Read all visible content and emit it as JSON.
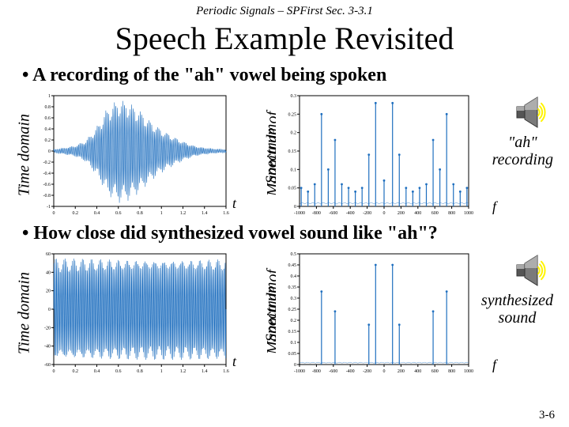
{
  "header": "Periodic Signals – SPFirst Sec. 3-3.1",
  "title": "Speech Example Revisited",
  "bullet1": "• A recording of the \"ah\" vowel being spoken",
  "bullet2": "• How close did synthesized vowel sound like \"ah\"?",
  "labels": {
    "time_domain": "Time domain",
    "magnitude_of": "Magnitude of",
    "spectrum": "Spectrum",
    "t": "t",
    "f": "f"
  },
  "captions": {
    "row1_l1": "\"ah\"",
    "row1_l2": "recording",
    "row2_l1": "synthesized",
    "row2_l2": "sound"
  },
  "slidenum": "3-6",
  "plots": {
    "time1": {
      "type": "line",
      "bg": "#ffffff",
      "axis_color": "#000000",
      "line_color": "#1f6fbf",
      "grid_color": "#d9d9d9",
      "xlim": [
        0,
        1.6
      ],
      "ylim": [
        -1,
        1
      ],
      "xticks": [
        0,
        0.2,
        0.4,
        0.6,
        0.8,
        1.0,
        1.2,
        1.4,
        1.6
      ],
      "yticks": [
        -1,
        -0.8,
        -0.6,
        -0.4,
        -0.2,
        0,
        0.2,
        0.4,
        0.6,
        0.8,
        1
      ],
      "envelope_peaks": [
        [
          0,
          0.03
        ],
        [
          0.1,
          0.06
        ],
        [
          0.2,
          0.1
        ],
        [
          0.3,
          0.2
        ],
        [
          0.4,
          0.45
        ],
        [
          0.5,
          0.8
        ],
        [
          0.6,
          0.95
        ],
        [
          0.7,
          0.9
        ],
        [
          0.8,
          0.75
        ],
        [
          0.9,
          0.55
        ],
        [
          1.0,
          0.4
        ],
        [
          1.1,
          0.28
        ],
        [
          1.2,
          0.18
        ],
        [
          1.3,
          0.1
        ],
        [
          1.4,
          0.06
        ],
        [
          1.5,
          0.04
        ],
        [
          1.6,
          0.03
        ]
      ],
      "carrier_cycles": 120
    },
    "mag1": {
      "type": "stem",
      "bg": "#ffffff",
      "axis_color": "#000000",
      "line_color": "#1f6fbf",
      "grid_color": "#d9d9d9",
      "xlim": [
        -1000,
        1000
      ],
      "ylim": [
        0,
        0.3
      ],
      "xticks": [
        -1000,
        -800,
        -600,
        -400,
        -200,
        0,
        200,
        400,
        600,
        800,
        1000
      ],
      "yticks": [
        0,
        0.05,
        0.1,
        0.15,
        0.2,
        0.25,
        0.3
      ],
      "stems": [
        [
          -980,
          0.05
        ],
        [
          -900,
          0.04
        ],
        [
          -820,
          0.06
        ],
        [
          -740,
          0.25
        ],
        [
          -660,
          0.1
        ],
        [
          -580,
          0.18
        ],
        [
          -500,
          0.06
        ],
        [
          -420,
          0.05
        ],
        [
          -340,
          0.04
        ],
        [
          -260,
          0.05
        ],
        [
          -180,
          0.14
        ],
        [
          -100,
          0.28
        ],
        [
          0,
          0.07
        ],
        [
          100,
          0.28
        ],
        [
          180,
          0.14
        ],
        [
          260,
          0.05
        ],
        [
          340,
          0.04
        ],
        [
          420,
          0.05
        ],
        [
          500,
          0.06
        ],
        [
          580,
          0.18
        ],
        [
          660,
          0.1
        ],
        [
          740,
          0.25
        ],
        [
          820,
          0.06
        ],
        [
          900,
          0.04
        ],
        [
          980,
          0.05
        ]
      ]
    },
    "time2": {
      "type": "line",
      "bg": "#ffffff",
      "axis_color": "#000000",
      "line_color": "#1f6fbf",
      "grid_color": "#d9d9d9",
      "xlim": [
        0,
        1.6
      ],
      "ylim": [
        -60,
        60
      ],
      "xticks": [
        0,
        0.2,
        0.4,
        0.6,
        0.8,
        1.0,
        1.2,
        1.4,
        1.6
      ],
      "yticks": [
        -60,
        -40,
        -20,
        0,
        20,
        40,
        60
      ],
      "amplitude": 55,
      "carrier_cycles": 140
    },
    "mag2": {
      "type": "stem",
      "bg": "#ffffff",
      "axis_color": "#000000",
      "line_color": "#1f6fbf",
      "grid_color": "#d9d9d9",
      "xlim": [
        -1000,
        1000
      ],
      "ylim": [
        0,
        0.5
      ],
      "xticks": [
        -1000,
        -800,
        -600,
        -400,
        -200,
        0,
        200,
        400,
        600,
        800,
        1000
      ],
      "yticks": [
        0,
        0.05,
        0.1,
        0.15,
        0.2,
        0.25,
        0.3,
        0.35,
        0.4,
        0.45,
        0.5
      ],
      "stems": [
        [
          -740,
          0.33
        ],
        [
          -580,
          0.24
        ],
        [
          -180,
          0.18
        ],
        [
          -100,
          0.45
        ],
        [
          100,
          0.45
        ],
        [
          180,
          0.18
        ],
        [
          580,
          0.24
        ],
        [
          740,
          0.33
        ]
      ]
    }
  },
  "speaker": {
    "cone_color": "#7a7a7a",
    "cone_highlight": "#cfcfcf",
    "base_color": "#555555",
    "base_light": "#a8a8a8",
    "wave_color": "#fff400"
  }
}
